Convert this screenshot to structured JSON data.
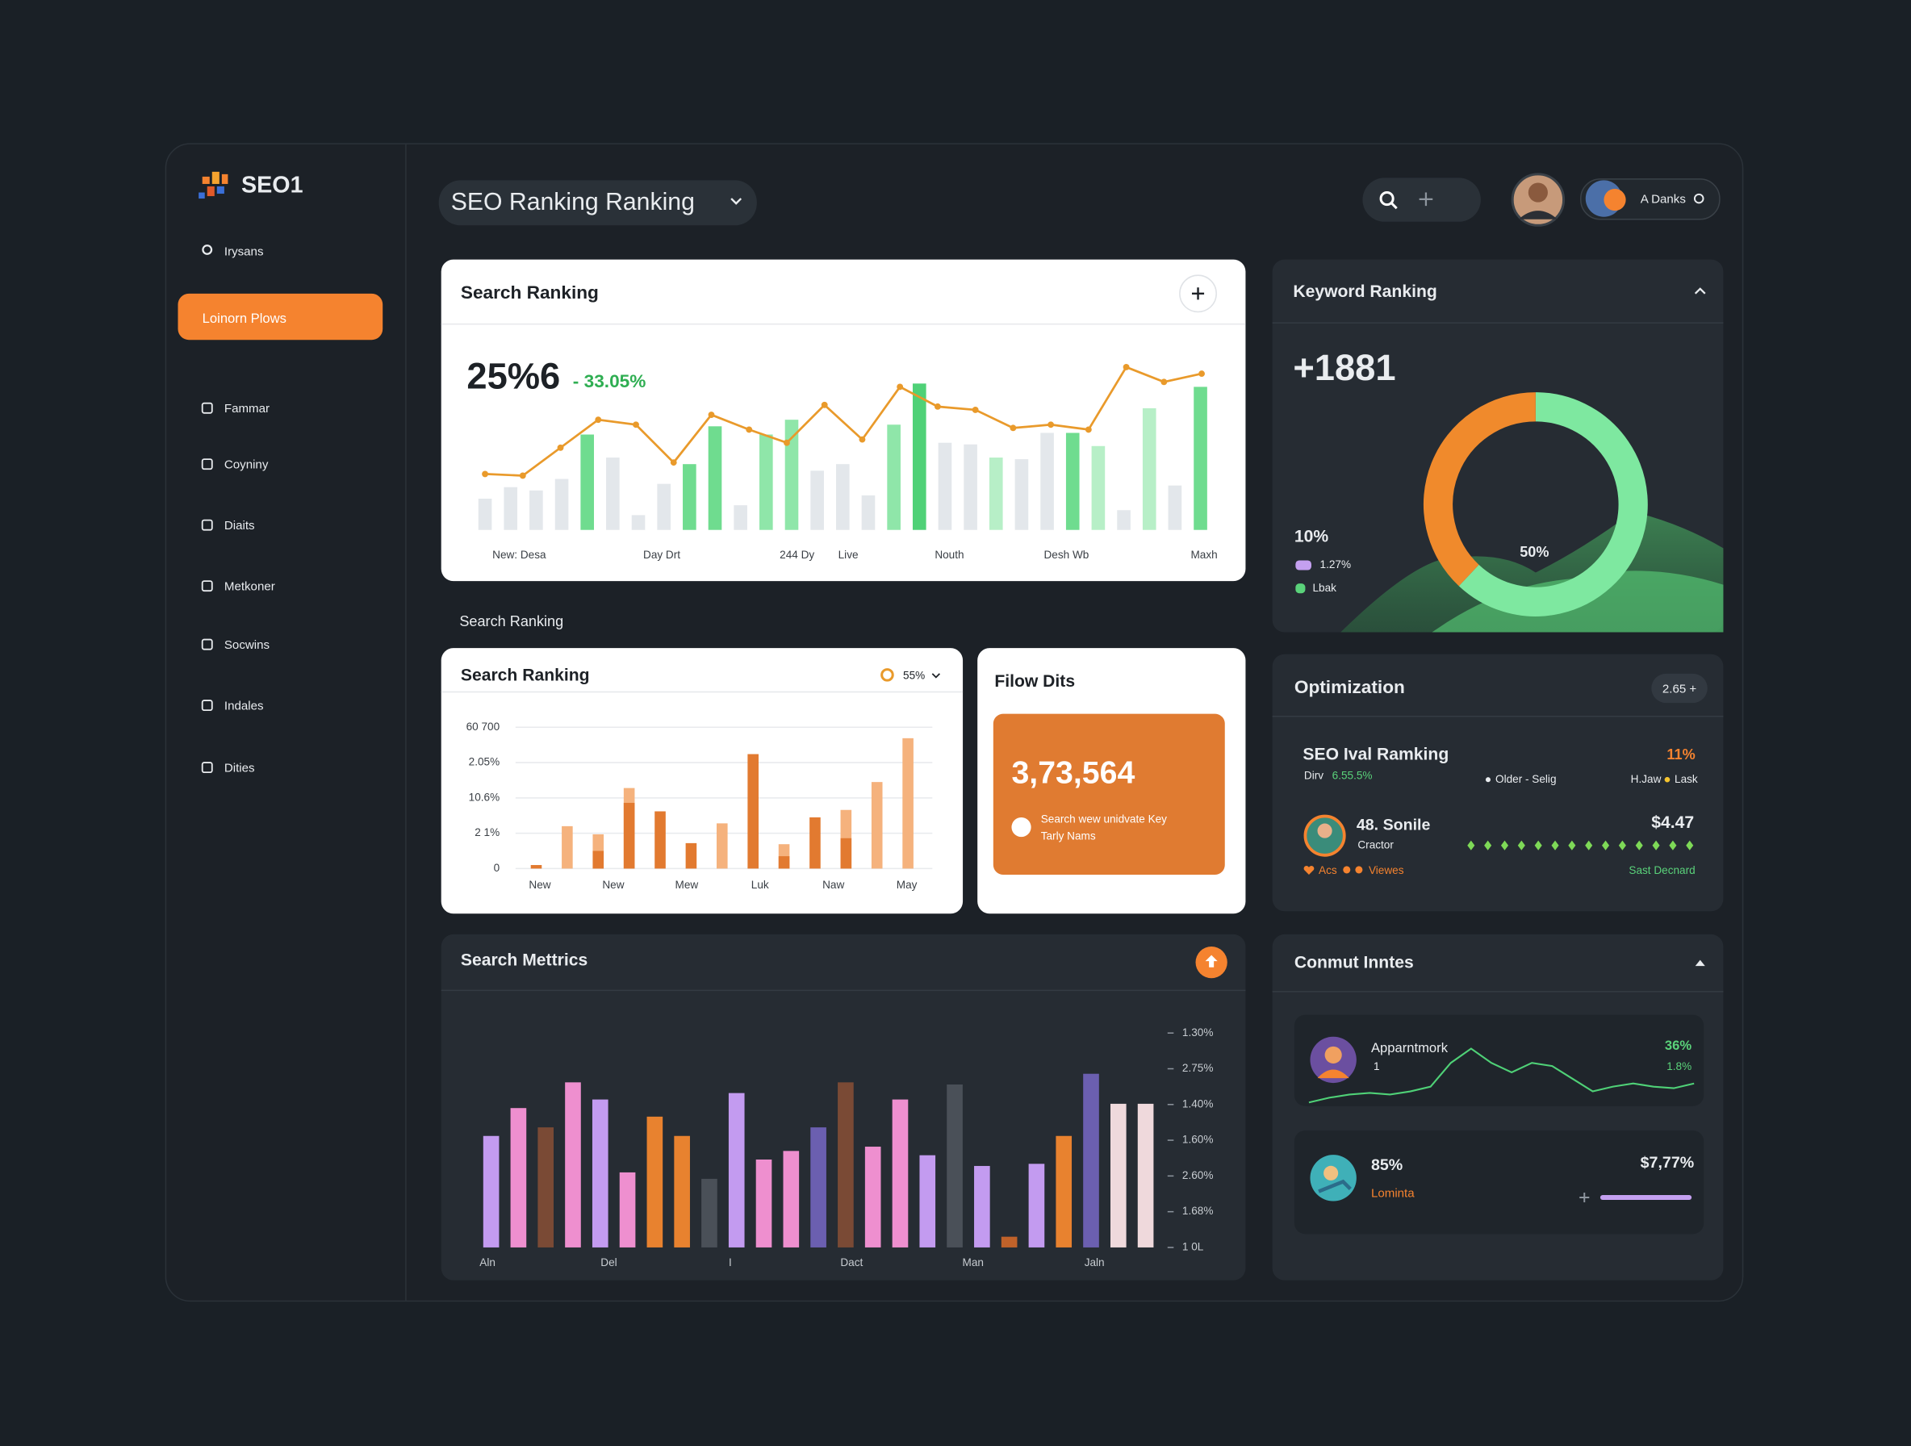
{
  "sidebar": {
    "logo": "SEO1",
    "search": "Irysans",
    "active_item": "Loinorn Plows",
    "items": [
      "Fammar",
      "Coyniny",
      "Diaits",
      "Metkoner",
      "Socwins",
      "Indales",
      "Dities"
    ]
  },
  "header": {
    "title": "SEO Ranking Ranking",
    "user": "A Danks"
  },
  "search_ranking": {
    "title": "Search Ranking",
    "value": "25%6",
    "change": "- 33.05%",
    "bars": [
      19,
      26,
      24,
      31,
      58,
      44,
      9,
      28,
      40,
      63,
      15,
      58,
      67,
      36,
      40,
      21,
      64,
      89,
      53,
      52,
      44,
      43,
      59,
      59,
      51,
      12,
      74,
      27,
      87
    ],
    "bar_colors": [
      "#e3e7eb",
      "#e3e7eb",
      "#e3e7eb",
      "#e3e7eb",
      "#6fdc8f",
      "#e3e7eb",
      "#e3e7eb",
      "#e3e7eb",
      "#6fdc8f",
      "#6fdc8f",
      "#e3e7eb",
      "#8fe6a9",
      "#8fe6a9",
      "#e3e7eb",
      "#e3e7eb",
      "#e3e7eb",
      "#8fe6a9",
      "#4fd177",
      "#e3e7eb",
      "#e3e7eb",
      "#b7efc7",
      "#e3e7eb",
      "#e3e7eb",
      "#6fdc8f",
      "#b7efc7",
      "#e3e7eb",
      "#b7efc7",
      "#e3e7eb",
      "#6fdc8f"
    ],
    "line": [
      34,
      33,
      50,
      67,
      64,
      41,
      70,
      61,
      53,
      76,
      55,
      87,
      75,
      73,
      62,
      64,
      61,
      99,
      90,
      95
    ],
    "line_color": "#e99a2b",
    "x_labels": [
      "New: Desa",
      "Day Drt",
      "244 Dy",
      "Live",
      "Nouth",
      "Desh Wb",
      "Maxh"
    ]
  },
  "section_label": "Search Ranking",
  "ranking_bars": {
    "title": "Search Ranking",
    "legend": "55%",
    "ylim": [
      0,
      4
    ],
    "yticks": [
      0,
      {
        "value": 1,
        "label": "2 1%"
      },
      {
        "value": 2,
        "label": "10.6%"
      },
      {
        "value": 3,
        "label": "2.05%"
      },
      {
        "value": 4,
        "label": "60 700"
      }
    ],
    "x_labels": [
      "New",
      "New",
      "Mew",
      "Luk",
      "Naw",
      "May"
    ],
    "series": [
      {
        "color": "#f5b27d",
        "values": [
          null,
          1.2,
          0.97,
          2.28,
          null,
          null,
          1.28,
          null,
          0.69,
          null,
          1.66,
          2.45,
          3.69
        ]
      },
      {
        "color": "#e27a30",
        "values": [
          0.1,
          null,
          0.5,
          1.86,
          1.62,
          0.72,
          null,
          3.24,
          0.35,
          1.45,
          0.86,
          null,
          null
        ]
      }
    ]
  },
  "flow": {
    "title": "Filow Dits",
    "value": "3,73,564",
    "note": [
      "Search wew unidvate Key",
      "Tarly Nams"
    ]
  },
  "metrics": {
    "title": "Search Mettrics",
    "axis_labels": [
      "1.30%",
      "2.75%",
      "1.40%",
      "1.60%",
      "2.60%",
      "1.68%",
      "1 0L"
    ],
    "x_labels": [
      "Aln",
      "Del",
      "I",
      "Dact",
      "Man",
      "Jaln"
    ],
    "bars": [
      52,
      65,
      56,
      77,
      69,
      35,
      61,
      52,
      32,
      72,
      41,
      45,
      56,
      77,
      47,
      69,
      43,
      76,
      38,
      5,
      39,
      52,
      81,
      67,
      67
    ],
    "bar_colors": [
      "#c39bf0",
      "#ee8fcf",
      "#7a4a35",
      "#ee8fcf",
      "#c39bf0",
      "#ee8fcf",
      "#e8822f",
      "#e8822f",
      "#4a5058",
      "#c39bf0",
      "#ee8fcf",
      "#ee8fcf",
      "#6b5fb0",
      "#7a4a35",
      "#ee8fcf",
      "#ee8fcf",
      "#c39bf0",
      "#4a5058",
      "#c39bf0",
      "#c0622a",
      "#c39bf0",
      "#e8822f",
      "#6b5fb0",
      "#efd9dc",
      "#efd9dc"
    ]
  },
  "keyword": {
    "title": "Keyword Ranking",
    "value": "+1881",
    "donut": [
      62,
      38
    ],
    "donut_colors": [
      "#7ee8a0",
      "#f08a2c"
    ],
    "donut_label": "50%",
    "share": "10%",
    "legend": [
      {
        "label": "1.27%",
        "color": "#c4a0f0"
      },
      {
        "label": "Lbak",
        "color": "#5ad27a"
      }
    ]
  },
  "optimization": {
    "title": "Optimization",
    "badge": "2.65 +",
    "seo_title": "SEO Ival Ramking",
    "seo_pct": "11%",
    "daily_label": "Dirv",
    "daily_value": "6.55.5%",
    "older": "Older - Selig",
    "hjaw": "H.Jaw",
    "lask": "Lask",
    "name": "48. Sonile",
    "role": "Cractor",
    "amount": "$4.47",
    "acs": "Acs",
    "views": "Viewes",
    "status": "Sast Decnard"
  },
  "comments": {
    "title": "Conmut Inntes",
    "items": [
      {
        "name": "Apparntmork",
        "sub": "1",
        "pct": "36%",
        "pct2": "1.8%"
      },
      {
        "value": "85%",
        "label": "Lominta",
        "amount": "$7,77%"
      }
    ],
    "sparkline": [
      0,
      3,
      5,
      6,
      5,
      7,
      10,
      25,
      34,
      25,
      19,
      25,
      23,
      15,
      7,
      10,
      12,
      10,
      9,
      12
    ]
  }
}
